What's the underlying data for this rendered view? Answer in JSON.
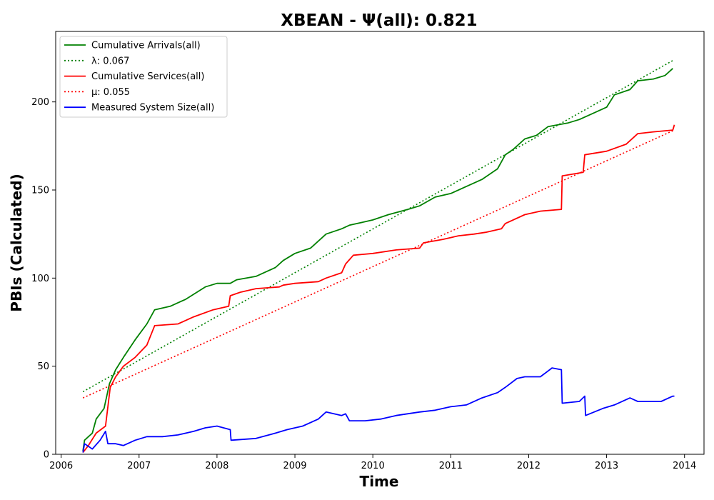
{
  "chart_data": {
    "type": "line",
    "title": "XBEAN -  Ψ(all): 0.821",
    "xlabel": "Time",
    "ylabel": "PBIs (Calculated)",
    "xlim": [
      2005.93,
      2014.25
    ],
    "ylim": [
      0,
      240
    ],
    "xticks": [
      2006,
      2007,
      2008,
      2009,
      2010,
      2011,
      2012,
      2013,
      2014
    ],
    "yticks": [
      0,
      50,
      100,
      150,
      200
    ],
    "grid": false,
    "legend_position": "top-left",
    "series": [
      {
        "name": "Cumulative Arrivals(all)",
        "color": "#008000",
        "style": "solid",
        "points": [
          [
            2006.28,
            2
          ],
          [
            2006.3,
            8
          ],
          [
            2006.4,
            12
          ],
          [
            2006.45,
            20
          ],
          [
            2006.55,
            26
          ],
          [
            2006.62,
            40
          ],
          [
            2006.7,
            48
          ],
          [
            2006.8,
            55
          ],
          [
            2006.95,
            65
          ],
          [
            2007.1,
            74
          ],
          [
            2007.2,
            82
          ],
          [
            2007.4,
            84
          ],
          [
            2007.6,
            88
          ],
          [
            2007.85,
            95
          ],
          [
            2008.0,
            97
          ],
          [
            2008.17,
            97
          ],
          [
            2008.25,
            99
          ],
          [
            2008.5,
            101
          ],
          [
            2008.75,
            106
          ],
          [
            2008.85,
            110
          ],
          [
            2009.0,
            114
          ],
          [
            2009.2,
            117
          ],
          [
            2009.4,
            125
          ],
          [
            2009.6,
            128
          ],
          [
            2009.7,
            130
          ],
          [
            2009.9,
            132
          ],
          [
            2010.0,
            133
          ],
          [
            2010.2,
            136
          ],
          [
            2010.45,
            139
          ],
          [
            2010.6,
            141
          ],
          [
            2010.8,
            146
          ],
          [
            2011.0,
            148
          ],
          [
            2011.2,
            152
          ],
          [
            2011.4,
            156
          ],
          [
            2011.6,
            162
          ],
          [
            2011.7,
            170
          ],
          [
            2011.8,
            173
          ],
          [
            2011.95,
            179
          ],
          [
            2012.1,
            181
          ],
          [
            2012.25,
            186
          ],
          [
            2012.5,
            188
          ],
          [
            2012.65,
            190
          ],
          [
            2012.8,
            193
          ],
          [
            2013.0,
            197
          ],
          [
            2013.1,
            204
          ],
          [
            2013.3,
            207
          ],
          [
            2013.4,
            212
          ],
          [
            2013.6,
            213
          ],
          [
            2013.75,
            215
          ],
          [
            2013.85,
            219
          ]
        ]
      },
      {
        "name": "λ: 0.067",
        "color": "#008000",
        "style": "dotted",
        "points": [
          [
            2006.28,
            35.5
          ],
          [
            2013.87,
            224
          ]
        ]
      },
      {
        "name": "Cumulative Services(all)",
        "color": "#ff0000",
        "style": "solid",
        "points": [
          [
            2006.28,
            1
          ],
          [
            2006.35,
            5
          ],
          [
            2006.45,
            12
          ],
          [
            2006.57,
            16
          ],
          [
            2006.63,
            38
          ],
          [
            2006.7,
            44
          ],
          [
            2006.8,
            50
          ],
          [
            2006.95,
            55
          ],
          [
            2007.1,
            62
          ],
          [
            2007.2,
            73
          ],
          [
            2007.5,
            74
          ],
          [
            2007.7,
            78
          ],
          [
            2007.95,
            82
          ],
          [
            2008.15,
            84
          ],
          [
            2008.17,
            90
          ],
          [
            2008.3,
            92
          ],
          [
            2008.5,
            94
          ],
          [
            2008.8,
            95
          ],
          [
            2008.85,
            96
          ],
          [
            2009.0,
            97
          ],
          [
            2009.3,
            98
          ],
          [
            2009.4,
            100
          ],
          [
            2009.6,
            103
          ],
          [
            2009.65,
            108
          ],
          [
            2009.75,
            113
          ],
          [
            2010.0,
            114
          ],
          [
            2010.3,
            116
          ],
          [
            2010.6,
            117
          ],
          [
            2010.65,
            120
          ],
          [
            2010.9,
            122
          ],
          [
            2011.1,
            124
          ],
          [
            2011.3,
            125
          ],
          [
            2011.45,
            126
          ],
          [
            2011.65,
            128
          ],
          [
            2011.7,
            131
          ],
          [
            2011.95,
            136
          ],
          [
            2012.15,
            138
          ],
          [
            2012.42,
            139
          ],
          [
            2012.43,
            158
          ],
          [
            2012.7,
            160
          ],
          [
            2012.72,
            170
          ],
          [
            2013.0,
            172
          ],
          [
            2013.25,
            176
          ],
          [
            2013.4,
            182
          ],
          [
            2013.6,
            183
          ],
          [
            2013.85,
            184
          ],
          [
            2013.87,
            187
          ]
        ]
      },
      {
        "name": "μ: 0.055",
        "color": "#ff0000",
        "style": "dotted",
        "points": [
          [
            2006.28,
            32
          ],
          [
            2013.87,
            184
          ]
        ]
      },
      {
        "name": "Measured System Size(all)",
        "color": "#0000ff",
        "style": "solid",
        "points": [
          [
            2006.28,
            1
          ],
          [
            2006.3,
            6
          ],
          [
            2006.4,
            3
          ],
          [
            2006.5,
            8
          ],
          [
            2006.57,
            13
          ],
          [
            2006.6,
            6
          ],
          [
            2006.7,
            6
          ],
          [
            2006.8,
            5
          ],
          [
            2006.95,
            8
          ],
          [
            2007.1,
            10
          ],
          [
            2007.3,
            10
          ],
          [
            2007.5,
            11
          ],
          [
            2007.7,
            13
          ],
          [
            2007.85,
            15
          ],
          [
            2008.0,
            16
          ],
          [
            2008.17,
            14
          ],
          [
            2008.18,
            8
          ],
          [
            2008.5,
            9
          ],
          [
            2008.75,
            12
          ],
          [
            2008.9,
            14
          ],
          [
            2009.1,
            16
          ],
          [
            2009.3,
            20
          ],
          [
            2009.4,
            24
          ],
          [
            2009.6,
            22
          ],
          [
            2009.65,
            23
          ],
          [
            2009.7,
            19
          ],
          [
            2009.9,
            19
          ],
          [
            2010.1,
            20
          ],
          [
            2010.3,
            22
          ],
          [
            2010.6,
            24
          ],
          [
            2010.8,
            25
          ],
          [
            2011.0,
            27
          ],
          [
            2011.2,
            28
          ],
          [
            2011.4,
            32
          ],
          [
            2011.6,
            35
          ],
          [
            2011.7,
            38
          ],
          [
            2011.85,
            43
          ],
          [
            2011.95,
            44
          ],
          [
            2012.15,
            44
          ],
          [
            2012.3,
            49
          ],
          [
            2012.42,
            48
          ],
          [
            2012.43,
            29
          ],
          [
            2012.65,
            30
          ],
          [
            2012.72,
            33
          ],
          [
            2012.73,
            22
          ],
          [
            2012.95,
            26
          ],
          [
            2013.1,
            28
          ],
          [
            2013.3,
            32
          ],
          [
            2013.4,
            30
          ],
          [
            2013.7,
            30
          ],
          [
            2013.85,
            33
          ],
          [
            2013.87,
            33
          ]
        ]
      }
    ]
  }
}
